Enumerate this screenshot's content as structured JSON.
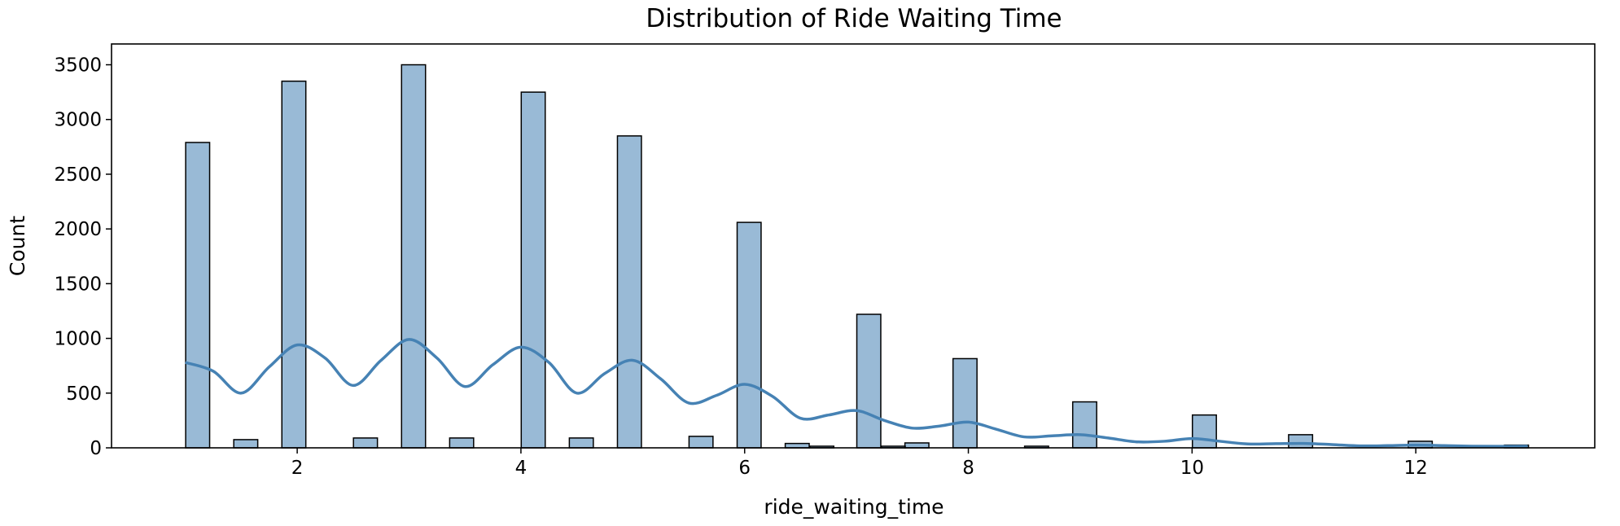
{
  "chart_data": {
    "type": "bar",
    "title": "Distribution of Ride Waiting Time",
    "xlabel": "ride_waiting_time",
    "ylabel": "Count",
    "xlim": [
      0.34,
      13.6
    ],
    "ylim": [
      0,
      3690
    ],
    "xticks": [
      2,
      4,
      6,
      8,
      10,
      12
    ],
    "yticks": [
      0,
      500,
      1000,
      1500,
      2000,
      2500,
      3000,
      3500
    ],
    "grid": false,
    "legend": "none",
    "bar_color": "#4682b4",
    "line_color": "#4682b4",
    "bar_width": 0.2143,
    "bars": [
      {
        "x": 1.11,
        "value": 2790
      },
      {
        "x": 1.54,
        "value": 75
      },
      {
        "x": 1.97,
        "value": 3350
      },
      {
        "x": 2.61,
        "value": 90
      },
      {
        "x": 3.04,
        "value": 3500
      },
      {
        "x": 3.47,
        "value": 90
      },
      {
        "x": 4.11,
        "value": 3250
      },
      {
        "x": 4.54,
        "value": 90
      },
      {
        "x": 4.97,
        "value": 2850
      },
      {
        "x": 5.61,
        "value": 105
      },
      {
        "x": 6.04,
        "value": 2060
      },
      {
        "x": 6.47,
        "value": 40
      },
      {
        "x": 6.69,
        "value": 15
      },
      {
        "x": 7.11,
        "value": 1220
      },
      {
        "x": 7.33,
        "value": 15
      },
      {
        "x": 7.54,
        "value": 45
      },
      {
        "x": 7.97,
        "value": 815
      },
      {
        "x": 8.61,
        "value": 15
      },
      {
        "x": 9.04,
        "value": 420
      },
      {
        "x": 10.11,
        "value": 300
      },
      {
        "x": 10.97,
        "value": 120
      },
      {
        "x": 12.04,
        "value": 60
      },
      {
        "x": 12.9,
        "value": 25
      }
    ],
    "kde": {
      "x": [
        1.0,
        1.25,
        1.5,
        1.75,
        2.0,
        2.25,
        2.5,
        2.75,
        3.0,
        3.25,
        3.5,
        3.75,
        4.0,
        4.25,
        4.5,
        4.75,
        5.0,
        5.25,
        5.5,
        5.75,
        6.0,
        6.25,
        6.5,
        6.75,
        7.0,
        7.25,
        7.5,
        7.75,
        8.0,
        8.25,
        8.5,
        8.75,
        9.0,
        9.25,
        9.5,
        9.75,
        10.0,
        10.25,
        10.5,
        10.75,
        11.0,
        11.25,
        11.5,
        11.75,
        12.0,
        12.25,
        12.5,
        12.75,
        13.0
      ],
      "y": [
        780,
        700,
        500,
        740,
        940,
        820,
        570,
        800,
        990,
        820,
        560,
        760,
        920,
        780,
        500,
        680,
        800,
        630,
        410,
        480,
        580,
        470,
        270,
        300,
        340,
        250,
        180,
        200,
        235,
        170,
        100,
        110,
        120,
        90,
        55,
        60,
        85,
        60,
        35,
        38,
        40,
        30,
        18,
        20,
        25,
        20,
        15,
        14,
        15
      ]
    }
  }
}
